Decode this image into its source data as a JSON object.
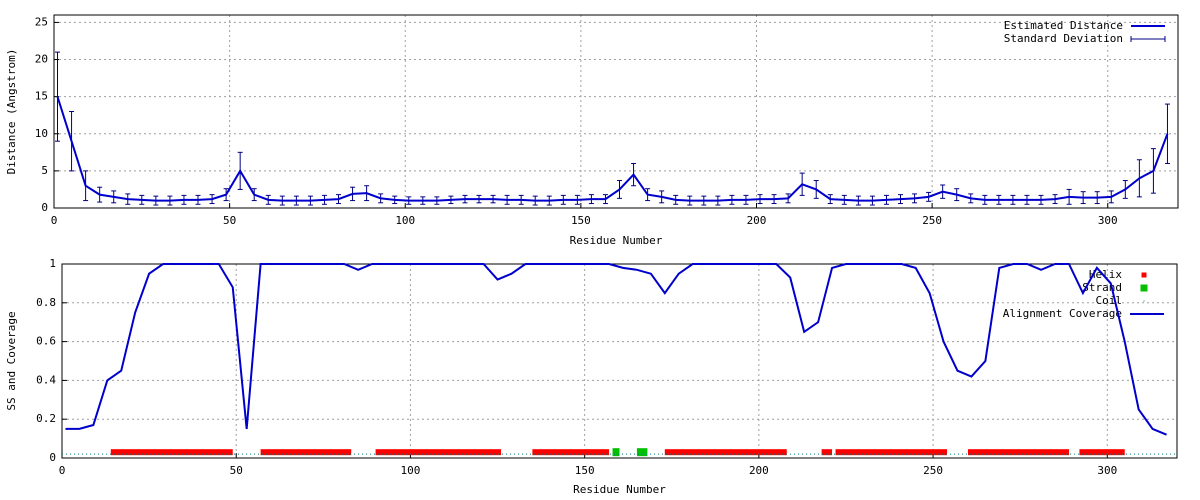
{
  "chart_data": [
    {
      "type": "line",
      "xlabel": "Residue Number",
      "ylabel": "Distance (Angstrom)",
      "xlim": [
        0,
        320
      ],
      "ylim": [
        0,
        26
      ],
      "xticks": [
        0,
        50,
        100,
        150,
        200,
        250,
        300
      ],
      "yticks": [
        0,
        5,
        10,
        15,
        20,
        25
      ],
      "grid": true,
      "legend": "top-right",
      "x": [
        1,
        5,
        9,
        13,
        17,
        21,
        25,
        29,
        33,
        37,
        41,
        45,
        49,
        53,
        57,
        61,
        65,
        69,
        73,
        77,
        81,
        85,
        89,
        93,
        97,
        101,
        105,
        109,
        113,
        117,
        121,
        125,
        129,
        133,
        137,
        141,
        145,
        149,
        153,
        157,
        161,
        165,
        169,
        173,
        177,
        181,
        185,
        189,
        193,
        197,
        201,
        205,
        209,
        213,
        217,
        221,
        225,
        229,
        233,
        237,
        241,
        245,
        249,
        253,
        257,
        261,
        265,
        269,
        273,
        277,
        281,
        285,
        289,
        293,
        297,
        301,
        305,
        309,
        313,
        317
      ],
      "series": [
        {
          "name": "Estimated Distance",
          "color": "#0000cc",
          "values": [
            15,
            9,
            3,
            1.8,
            1.5,
            1.2,
            1.1,
            1.0,
            1.0,
            1.1,
            1.1,
            1.2,
            1.8,
            5,
            1.8,
            1.1,
            1.0,
            1.0,
            1.0,
            1.1,
            1.2,
            1.9,
            2.0,
            1.3,
            1.1,
            1.0,
            1.0,
            1.0,
            1.1,
            1.2,
            1.2,
            1.2,
            1.1,
            1.1,
            1.0,
            1.0,
            1.1,
            1.1,
            1.2,
            1.2,
            2.5,
            4.5,
            1.8,
            1.5,
            1.1,
            1.0,
            1.0,
            1.0,
            1.1,
            1.1,
            1.2,
            1.2,
            1.3,
            3.2,
            2.5,
            1.2,
            1.1,
            1.0,
            1.0,
            1.1,
            1.2,
            1.3,
            1.5,
            2.2,
            1.8,
            1.3,
            1.1,
            1.1,
            1.1,
            1.1,
            1.1,
            1.2,
            1.5,
            1.4,
            1.4,
            1.5,
            2.5,
            4,
            5,
            10
          ]
        }
      ],
      "error_bars": {
        "name": "Standard Deviation",
        "color": "#000080",
        "values": [
          6,
          4,
          2,
          1,
          0.8,
          0.7,
          0.6,
          0.6,
          0.6,
          0.6,
          0.6,
          0.6,
          0.8,
          2.5,
          0.8,
          0.6,
          0.6,
          0.6,
          0.6,
          0.6,
          0.6,
          0.9,
          1.0,
          0.6,
          0.5,
          0.5,
          0.5,
          0.5,
          0.5,
          0.5,
          0.5,
          0.5,
          0.6,
          0.6,
          0.6,
          0.6,
          0.6,
          0.6,
          0.6,
          0.6,
          1.2,
          1.5,
          0.8,
          0.8,
          0.6,
          0.6,
          0.6,
          0.6,
          0.6,
          0.6,
          0.6,
          0.6,
          0.6,
          1.5,
          1.2,
          0.6,
          0.6,
          0.6,
          0.6,
          0.6,
          0.6,
          0.6,
          0.6,
          0.9,
          0.8,
          0.6,
          0.6,
          0.6,
          0.6,
          0.6,
          0.6,
          0.6,
          1.0,
          0.8,
          0.8,
          0.8,
          1.2,
          2.5,
          3,
          4
        ]
      }
    },
    {
      "type": "line",
      "xlabel": "Residue Number",
      "ylabel": "SS and Coverage",
      "xlim": [
        0,
        320
      ],
      "ylim": [
        0,
        1
      ],
      "xticks": [
        0,
        50,
        100,
        150,
        200,
        250,
        300
      ],
      "yticks": [
        0,
        0.2,
        0.4,
        0.6,
        0.8,
        1
      ],
      "grid": true,
      "legend": "top-right",
      "segments": [
        {
          "name": "Helix",
          "color": "#ff0000",
          "y": 0.03,
          "ranges": [
            [
              14,
              49
            ],
            [
              57,
              83
            ],
            [
              90,
              126
            ],
            [
              135,
              157
            ],
            [
              173,
              208
            ],
            [
              218,
              221
            ],
            [
              222,
              254
            ],
            [
              260,
              289
            ],
            [
              292,
              305
            ]
          ]
        },
        {
          "name": "Strand",
          "color": "#00c000",
          "y": 0.03,
          "ranges": [
            [
              158,
              160
            ],
            [
              165,
              168
            ]
          ]
        },
        {
          "name": "Coil",
          "color": "#008080",
          "y": 0.02,
          "ranges": [
            [
              0,
              320
            ]
          ]
        }
      ],
      "x": [
        1,
        5,
        9,
        13,
        17,
        21,
        25,
        29,
        33,
        37,
        41,
        45,
        49,
        53,
        57,
        61,
        65,
        69,
        73,
        77,
        81,
        85,
        89,
        93,
        97,
        101,
        105,
        109,
        113,
        117,
        121,
        125,
        129,
        133,
        137,
        141,
        145,
        149,
        153,
        157,
        161,
        165,
        169,
        173,
        177,
        181,
        185,
        189,
        193,
        197,
        201,
        205,
        209,
        213,
        217,
        221,
        225,
        229,
        233,
        237,
        241,
        245,
        249,
        253,
        257,
        261,
        265,
        269,
        273,
        277,
        281,
        285,
        289,
        293,
        297,
        301,
        305,
        309,
        313,
        317
      ],
      "series": [
        {
          "name": "Alignment Coverage",
          "color": "#0000cc",
          "values": [
            0.15,
            0.15,
            0.17,
            0.4,
            0.45,
            0.75,
            0.95,
            1,
            1,
            1,
            1,
            1,
            0.88,
            0.15,
            1,
            1,
            1,
            1,
            1,
            1,
            1,
            0.97,
            1,
            1,
            1,
            1,
            1,
            1,
            1,
            1,
            1,
            0.92,
            0.95,
            1,
            1,
            1,
            1,
            1,
            1,
            1,
            0.98,
            0.97,
            0.95,
            0.85,
            0.95,
            1,
            1,
            1,
            1,
            1,
            1,
            1,
            0.93,
            0.65,
            0.7,
            0.98,
            1,
            1,
            1,
            1,
            1,
            0.98,
            0.85,
            0.6,
            0.45,
            0.42,
            0.5,
            0.98,
            1,
            1,
            0.97,
            1,
            1,
            0.85,
            0.98,
            0.9,
            0.6,
            0.25,
            0.15,
            0.12
          ]
        }
      ]
    }
  ]
}
